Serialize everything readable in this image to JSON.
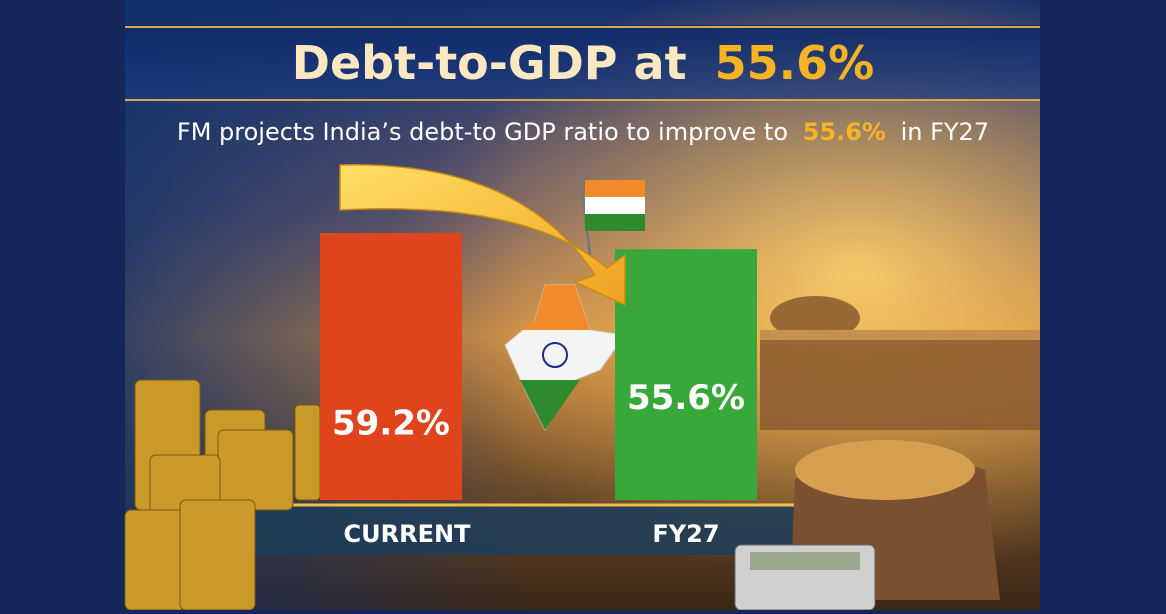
{
  "chart_data": {
    "type": "bar",
    "title": [
      "Debt-to-GDP at",
      "55.6%"
    ],
    "subtitle": [
      "FM projects India’s debt-to GDP ratio to improve to",
      "55.6%",
      "in FY27"
    ],
    "categories": [
      "CURRENT",
      "FY27"
    ],
    "values": [
      59.2,
      55.6
    ],
    "value_labels": [
      "59.2%",
      "55.6%"
    ],
    "colors": [
      "#e0441c",
      "#38a83a"
    ]
  }
}
